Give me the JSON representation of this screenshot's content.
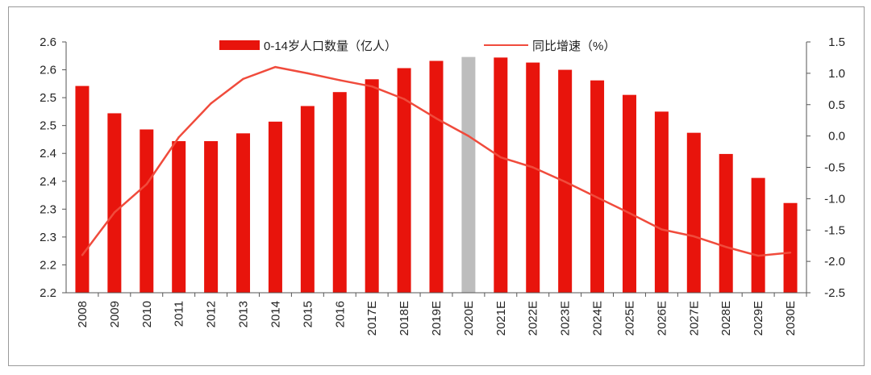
{
  "chart_data": {
    "type": "bar",
    "categories": [
      "2008",
      "2009",
      "2010",
      "2011",
      "2012",
      "2013",
      "2014",
      "2015",
      "2016",
      "2017E",
      "2018E",
      "2019E",
      "2020E",
      "2021E",
      "2022E",
      "2023E",
      "2024E",
      "2025E",
      "2026E",
      "2027E",
      "2028E",
      "2029E",
      "2030E"
    ],
    "series": [
      {
        "name": "0-14岁人口数量（亿人）",
        "type": "bar",
        "axis": "left",
        "color": "#e8140c",
        "highlight_color": "#bdbdbd",
        "highlight_category": "2020E",
        "values": [
          2.571,
          2.522,
          2.493,
          2.472,
          2.472,
          2.486,
          2.507,
          2.535,
          2.56,
          2.583,
          2.603,
          2.616,
          2.623,
          2.622,
          2.613,
          2.6,
          2.581,
          2.555,
          2.525,
          2.487,
          2.449,
          2.406,
          2.361
        ]
      },
      {
        "name": "同比增速（%）",
        "type": "line",
        "axis": "right",
        "color": "#f04b3c",
        "values": [
          -1.9,
          -1.22,
          -0.77,
          -0.02,
          0.52,
          0.91,
          1.1,
          1.0,
          0.89,
          0.79,
          0.59,
          0.28,
          0.0,
          -0.34,
          -0.5,
          -0.73,
          -0.98,
          -1.23,
          -1.49,
          -1.6,
          -1.77,
          -1.91,
          -1.86
        ]
      }
    ],
    "left_axis": {
      "ylim": [
        2.2,
        2.65
      ],
      "tick_labels": [
        "2.6",
        "2.6",
        "2.5",
        "2.5",
        "2.4",
        "2.4",
        "2.3",
        "2.3",
        "2.2",
        "2.2"
      ]
    },
    "right_axis": {
      "ylim": [
        -2.5,
        1.5
      ],
      "tick_labels": [
        "1.5",
        "1.0",
        "0.5",
        "0.0",
        "-0.5",
        "-1.0",
        "-1.5",
        "-2.0",
        "-2.5"
      ]
    },
    "legend_placement": "top-center",
    "grid": false
  }
}
